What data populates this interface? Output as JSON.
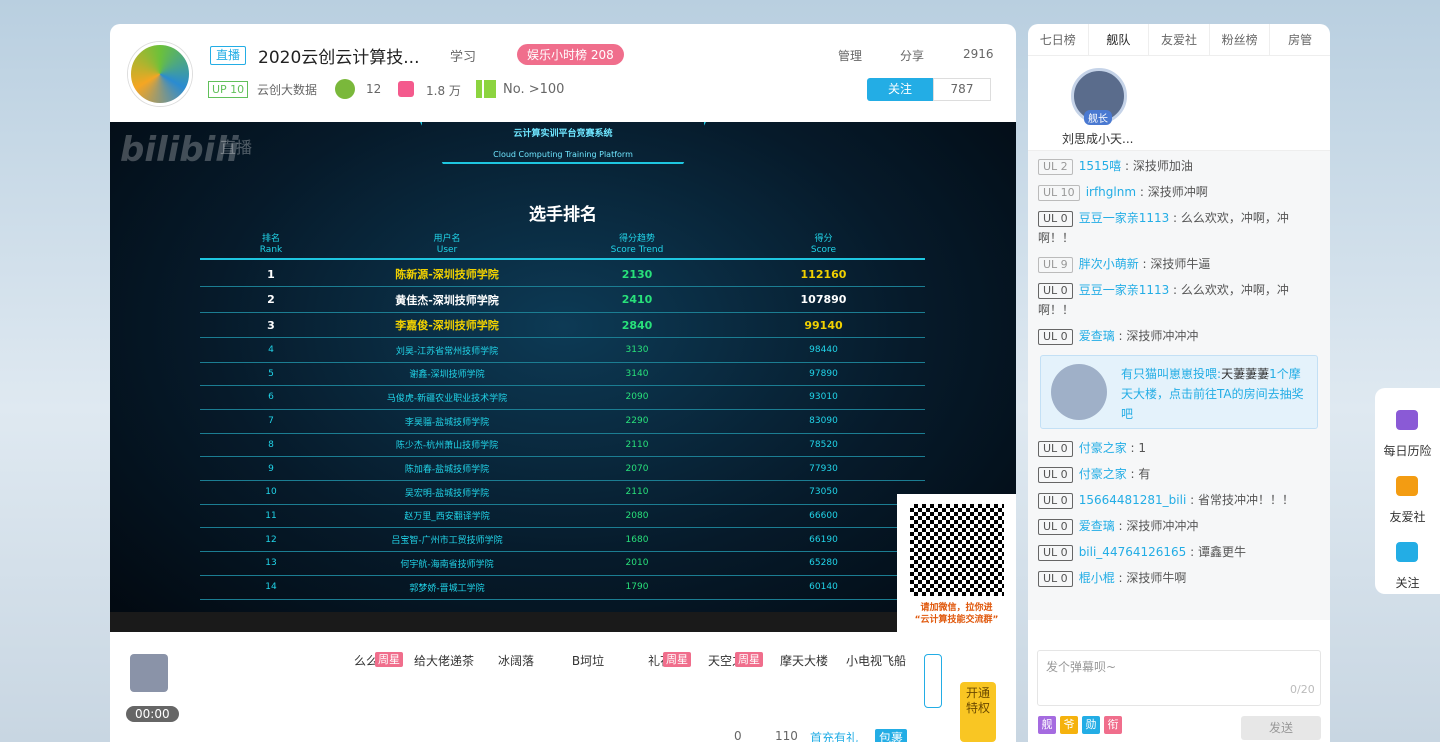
{
  "header": {
    "live_badge": "直播",
    "title": "2020云创云计算技...",
    "category": "学习",
    "hour_rank": "娱乐小时榜 208",
    "up_level": "UP 10",
    "up_name": "云创大数据",
    "fans_club": "12",
    "gifts": "1.8 万",
    "rank": "No. >100",
    "manage": "管理",
    "share": "分享",
    "viewers": "2916",
    "follow": "关注",
    "followers": "787"
  },
  "video": {
    "logo": "bilibili",
    "logo_sub": "直播",
    "system_title": "云计算实训平台竞赛系统",
    "system_subtitle": "Cloud Computing Training Platform",
    "board_title": "选手排名",
    "columns": [
      [
        "排名",
        "Rank"
      ],
      [
        "用户名",
        "User"
      ],
      [
        "得分趋势",
        "Score Trend"
      ],
      [
        "得分",
        "Score"
      ]
    ],
    "rows": [
      [
        "1",
        "陈新源-深圳技师学院",
        "2130",
        "112160"
      ],
      [
        "2",
        "黄佳杰-深圳技师学院",
        "2410",
        "107890"
      ],
      [
        "3",
        "李嘉俊-深圳技师学院",
        "2840",
        "99140"
      ],
      [
        "4",
        "刘昊-江苏省常州技师学院",
        "3130",
        "98440"
      ],
      [
        "5",
        "谢鑫-深圳技师学院",
        "3140",
        "97890"
      ],
      [
        "6",
        "马俊虎-新疆农业职业技术学院",
        "2090",
        "93010"
      ],
      [
        "7",
        "李昊骝-盐城技师学院",
        "2290",
        "83090"
      ],
      [
        "8",
        "陈少杰-杭州萧山技师学院",
        "2110",
        "78520"
      ],
      [
        "9",
        "陈加春-盐城技师学院",
        "2070",
        "77930"
      ],
      [
        "10",
        "吴宏明-盐城技师学院",
        "2110",
        "73050"
      ],
      [
        "11",
        "赵万里_西安翻译学院",
        "2080",
        "66600"
      ],
      [
        "12",
        "吕宝智-广州市工贸技师学院",
        "1680",
        "66190"
      ],
      [
        "13",
        "何宇航-海南省技师学院",
        "2010",
        "65280"
      ],
      [
        "14",
        "郭梦娇-晋城工学院",
        "1790",
        "60140"
      ]
    ],
    "qr_caption": [
      "请加微信，拉你进",
      "“云计算技能交流群”"
    ]
  },
  "player": {
    "timer": "00:00"
  },
  "gifts": [
    {
      "name": "么么哒",
      "tag": "周星"
    },
    {
      "name": "给大佬递茶"
    },
    {
      "name": "冰阔落"
    },
    {
      "name": "B坷垃"
    },
    {
      "name": "礼花",
      "tag": "周星"
    },
    {
      "name": "天空之翼",
      "tag": "周星"
    },
    {
      "name": "摩天大楼"
    },
    {
      "name": "小电视飞船"
    }
  ],
  "wallet": {
    "gold": "0",
    "silver": "110",
    "first_charge": "首充有礼",
    "package": "包裹"
  },
  "privilege": "开通特权",
  "sidebar": {
    "tabs": [
      "七日榜",
      "舰队",
      "友爱社",
      "粉丝榜",
      "房管"
    ],
    "captain": {
      "badge": "舰长",
      "name": "刘思成小天..."
    }
  },
  "chat": {
    "separator": " : ",
    "messages": [
      {
        "level": "UL 2",
        "user": "1515嘻",
        "text": "深技师加油"
      },
      {
        "level": "UL 10",
        "user": "irfhglnm",
        "text": "深技师冲啊"
      },
      {
        "level": "UL 0",
        "user": "豆豆一家亲1113",
        "text": "么么欢欢，冲啊，冲啊！！"
      },
      {
        "level": "UL 9",
        "user": "胖次小萌新",
        "text": "深技师牛逼"
      },
      {
        "level": "UL 0",
        "user": "豆豆一家亲1113",
        "text": "么么欢欢，冲啊，冲啊！！"
      },
      {
        "level": "UL 0",
        "user": "爱查璃",
        "text": "深技师冲冲冲"
      },
      {
        "user": "有只猫叫崽崽",
        "action": "投喂:",
        "target": "天萋萋萋",
        "text": "1个摩天大楼，点击前往TA的房间去抽奖吧"
      },
      {
        "level": "UL 0",
        "user": "付豪之家",
        "text": "1"
      },
      {
        "level": "UL 0",
        "user": "付豪之家",
        "text": "有"
      },
      {
        "level": "UL 0",
        "user": "15664481281_bili",
        "text": "省常技冲冲！！！"
      },
      {
        "level": "UL 0",
        "user": "爱查璃",
        "text": "深技师冲冲冲"
      },
      {
        "level": "UL 0",
        "user": "bili_44764126165",
        "text": "谭鑫更牛"
      },
      {
        "level": "UL 0",
        "user": "棍小棍",
        "text": "深技师牛啊"
      }
    ]
  },
  "input": {
    "placeholder": "发个弹幕呗~",
    "counter": "0/20",
    "send": "发送",
    "medals": [
      "舰",
      "爷",
      "勋",
      "衔"
    ]
  },
  "float_menu": [
    "每日历险",
    "友爱社",
    "关注"
  ]
}
